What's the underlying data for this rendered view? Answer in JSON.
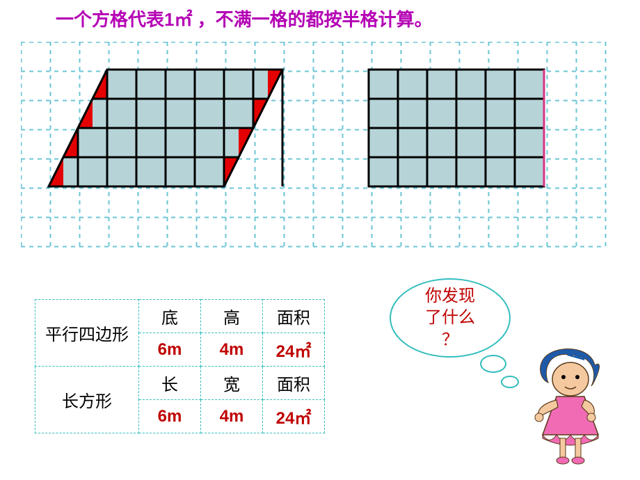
{
  "title": "一个方格代表1㎡ ，不满一格的都按半格计算。",
  "colors": {
    "title": "#b400b4",
    "grid_dash": "#6bc6d6",
    "shape_fill": "#b6d4d7",
    "shape_border": "#000000",
    "accent_red": "#e40000",
    "table_border": "#33bdbd",
    "value_text": "#c00000",
    "bubble_border": "#33bdbd"
  },
  "grid": {
    "cell_size": 42,
    "cols_total": 20,
    "rows_total": 7,
    "dash": "6 6"
  },
  "parallelogram": {
    "cell": 42,
    "base_cells": 6,
    "height_cells": 4,
    "slant_cells": 2,
    "fill": "#b6d4d7",
    "highlight": "#e40000",
    "border": "#000000"
  },
  "rectangle": {
    "cell": 42,
    "cols": 6,
    "rows": 4,
    "fill": "#b6d4d7",
    "border": "#000000",
    "right_edge": "#d63384"
  },
  "table": {
    "rows": [
      {
        "label": "平行四边形",
        "headers": [
          "底",
          "高",
          "面积"
        ],
        "values": [
          "6m",
          "4m",
          "24㎡"
        ]
      },
      {
        "label": "长方形",
        "headers": [
          "长",
          "宽",
          "面积"
        ],
        "values": [
          "6m",
          "4m",
          "24㎡"
        ]
      }
    ]
  },
  "bubble": {
    "line1": "你发现",
    "line2": "了什么",
    "line3": "？"
  },
  "character": {
    "hair": "#1e5aa8",
    "skin": "#f5c9a0",
    "dress": "#f06bb4",
    "outline": "#5a3a1a"
  }
}
